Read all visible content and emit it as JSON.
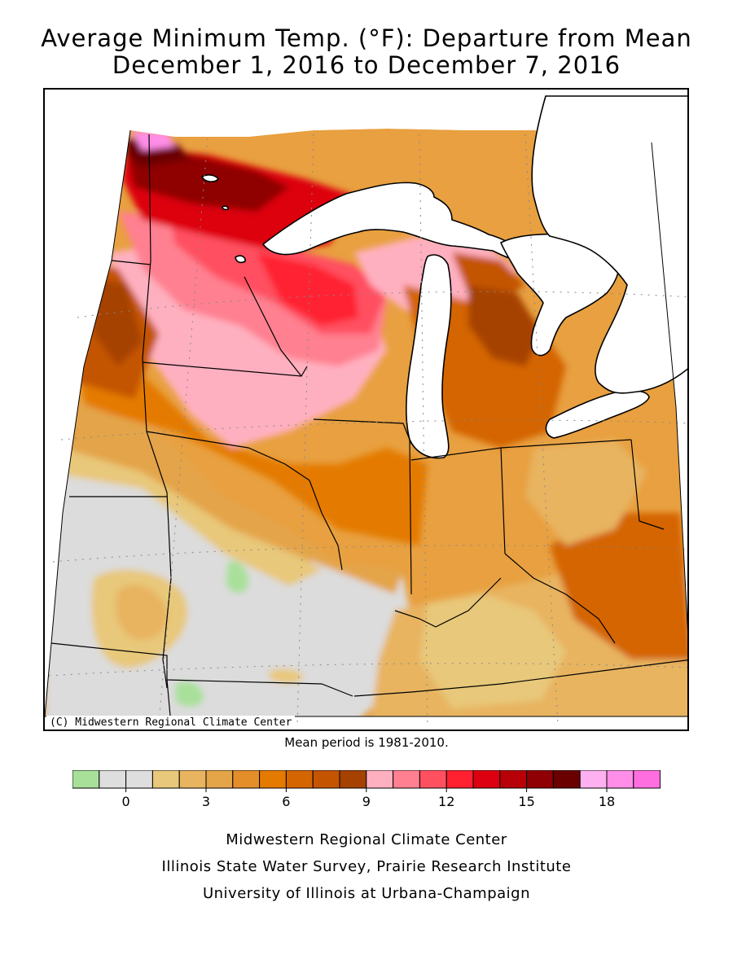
{
  "title": {
    "line1": "Average Minimum Temp. (°F): Departure from Mean",
    "line2": "December 1, 2016 to December 7, 2016"
  },
  "map": {
    "copyright": "(C) Midwestern Regional Climate Center",
    "mean_period": "Mean period is 1981-2010."
  },
  "legend": {
    "colors": [
      "#a8e09a",
      "#dedede",
      "#dedede",
      "#e8c87a",
      "#e8b460",
      "#e4a448",
      "#e48e2a",
      "#e47a00",
      "#d46500",
      "#c45400",
      "#a64200",
      "#ffb0c0",
      "#ff8090",
      "#ff5060",
      "#ff2030",
      "#dd0010",
      "#b70008",
      "#8f0004",
      "#6a0000",
      "#ffb0f0",
      "#ff8ee8",
      "#ff6ee0"
    ],
    "tick_labels": [
      "0",
      "3",
      "6",
      "9",
      "12",
      "15",
      "18"
    ]
  },
  "footer": {
    "line1": "Midwestern Regional Climate Center",
    "line2": "Illinois State Water Survey, Prairie Research Institute",
    "line3": "University of Illinois at Urbana-Champaign"
  }
}
